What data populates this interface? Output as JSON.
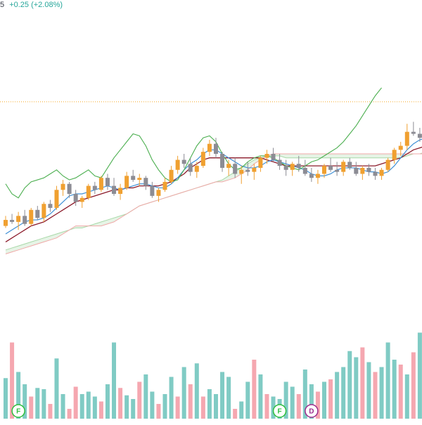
{
  "header": {
    "price_fragment": "5",
    "change": "+0.25 (+2.08%)"
  },
  "colors": {
    "candle_up": "#f0a030",
    "candle_down": "#8c8c94",
    "tenkan": "#3d8fd6",
    "kijun": "#8b1a2a",
    "chikou": "#4caf50",
    "span_a": "#a8d8a8",
    "span_b": "#f0a8a8",
    "cloud_fill": "#e6f4e6",
    "volume_up": "#80cbc4",
    "volume_down": "#f5a7b0",
    "price_line": "#f5a623",
    "marker_f": "#2dbe3c",
    "marker_d": "#9c2a8c"
  },
  "chart_data": {
    "type": "candlestick",
    "price_line": 35.6,
    "candles": [
      [
        29.4,
        29.9,
        29.3,
        29.7
      ],
      [
        29.7,
        30.0,
        29.5,
        29.6
      ],
      [
        29.6,
        30.1,
        29.2,
        29.9
      ],
      [
        29.9,
        30.2,
        29.4,
        29.5
      ],
      [
        29.5,
        30.3,
        29.4,
        30.2
      ],
      [
        30.2,
        30.4,
        29.7,
        29.8
      ],
      [
        29.8,
        30.6,
        29.6,
        30.5
      ],
      [
        30.5,
        30.7,
        30.1,
        30.3
      ],
      [
        30.3,
        31.4,
        30.2,
        31.2
      ],
      [
        31.2,
        31.7,
        30.9,
        31.5
      ],
      [
        31.5,
        31.6,
        30.8,
        31.0
      ],
      [
        31.0,
        31.2,
        30.4,
        30.6
      ],
      [
        30.6,
        30.9,
        30.3,
        30.8
      ],
      [
        30.8,
        31.5,
        30.7,
        31.4
      ],
      [
        31.4,
        31.6,
        31.0,
        31.2
      ],
      [
        31.2,
        31.9,
        31.1,
        31.8
      ],
      [
        31.8,
        32.0,
        31.2,
        31.4
      ],
      [
        31.4,
        31.8,
        30.9,
        31.0
      ],
      [
        31.0,
        31.5,
        30.7,
        31.3
      ],
      [
        31.3,
        32.1,
        31.2,
        31.9
      ],
      [
        31.9,
        32.2,
        31.6,
        31.7
      ],
      [
        31.7,
        32.0,
        31.4,
        31.8
      ],
      [
        31.8,
        31.9,
        31.2,
        31.4
      ],
      [
        31.4,
        31.6,
        30.8,
        30.9
      ],
      [
        30.9,
        31.3,
        30.6,
        31.2
      ],
      [
        31.2,
        31.8,
        31.1,
        31.6
      ],
      [
        31.6,
        32.4,
        31.5,
        32.2
      ],
      [
        32.2,
        32.9,
        32.0,
        32.7
      ],
      [
        32.7,
        33.0,
        32.3,
        32.5
      ],
      [
        32.5,
        32.8,
        31.9,
        32.1
      ],
      [
        32.1,
        32.6,
        31.8,
        32.4
      ],
      [
        32.4,
        33.3,
        32.3,
        33.1
      ],
      [
        33.1,
        33.7,
        32.9,
        33.5
      ],
      [
        33.5,
        33.8,
        32.8,
        33.0
      ],
      [
        33.0,
        33.1,
        32.1,
        32.3
      ],
      [
        32.3,
        32.7,
        31.9,
        32.5
      ],
      [
        32.5,
        32.8,
        31.8,
        32.0
      ],
      [
        32.0,
        32.4,
        31.5,
        32.2
      ],
      [
        32.2,
        32.6,
        31.9,
        32.1
      ],
      [
        32.1,
        32.5,
        31.7,
        32.3
      ],
      [
        32.3,
        32.9,
        32.1,
        32.8
      ],
      [
        32.8,
        33.2,
        32.5,
        33.0
      ],
      [
        33.0,
        33.3,
        32.6,
        32.7
      ],
      [
        32.7,
        33.0,
        32.2,
        32.4
      ],
      [
        32.4,
        32.7,
        31.9,
        32.2
      ],
      [
        32.2,
        32.6,
        31.9,
        32.5
      ],
      [
        32.5,
        32.9,
        32.1,
        32.3
      ],
      [
        32.3,
        32.7,
        31.9,
        32.0
      ],
      [
        32.0,
        32.3,
        31.6,
        31.8
      ],
      [
        31.8,
        32.2,
        31.5,
        32.0
      ],
      [
        32.0,
        32.5,
        31.8,
        32.4
      ],
      [
        32.4,
        32.8,
        32.1,
        32.2
      ],
      [
        32.2,
        32.6,
        31.9,
        32.1
      ],
      [
        32.1,
        32.7,
        31.9,
        32.6
      ],
      [
        32.6,
        32.8,
        32.2,
        32.3
      ],
      [
        32.3,
        32.6,
        31.9,
        32.0
      ],
      [
        32.0,
        32.4,
        31.7,
        32.3
      ],
      [
        32.3,
        32.5,
        31.9,
        32.1
      ],
      [
        32.1,
        32.3,
        31.7,
        31.9
      ],
      [
        31.9,
        32.3,
        31.7,
        32.2
      ],
      [
        32.2,
        32.8,
        32.1,
        32.7
      ],
      [
        32.7,
        33.3,
        32.5,
        33.2
      ],
      [
        33.2,
        33.6,
        32.9,
        33.4
      ],
      [
        33.4,
        34.5,
        33.2,
        34.1
      ],
      [
        34.1,
        34.6,
        33.9,
        34.0
      ],
      [
        34.0,
        34.3,
        33.6,
        33.8
      ],
      [
        33.8,
        34.1,
        33.4,
        33.9
      ]
    ],
    "tenkan": [
      29.0,
      29.2,
      29.4,
      29.6,
      29.7,
      29.7,
      29.8,
      30.0,
      30.3,
      30.6,
      30.9,
      31.0,
      31.0,
      31.1,
      31.2,
      31.3,
      31.4,
      31.3,
      31.2,
      31.3,
      31.4,
      31.5,
      31.5,
      31.4,
      31.3,
      31.3,
      31.5,
      31.8,
      32.2,
      32.5,
      32.7,
      33.0,
      33.2,
      33.2,
      33.0,
      32.8,
      32.6,
      32.4,
      32.3,
      32.3,
      32.4,
      32.6,
      32.7,
      32.6,
      32.5,
      32.4,
      32.3,
      32.2,
      32.0,
      31.9,
      31.9,
      32.0,
      32.2,
      32.3,
      32.3,
      32.3,
      32.2,
      32.1,
      32.1,
      32.0,
      32.1,
      32.4,
      32.8,
      33.2,
      33.5,
      33.7,
      33.8
    ],
    "kijun": [
      28.6,
      28.8,
      29.0,
      29.2,
      29.4,
      29.5,
      29.6,
      29.8,
      30.0,
      30.2,
      30.4,
      30.6,
      30.7,
      30.8,
      30.9,
      31.0,
      31.1,
      31.2,
      31.2,
      31.3,
      31.3,
      31.4,
      31.4,
      31.4,
      31.4,
      31.5,
      31.6,
      31.8,
      32.0,
      32.3,
      32.5,
      32.7,
      32.8,
      32.8,
      32.8,
      32.8,
      32.8,
      32.8,
      32.8,
      32.8,
      32.8,
      32.7,
      32.6,
      32.5,
      32.4,
      32.4,
      32.4,
      32.4,
      32.4,
      32.4,
      32.4,
      32.4,
      32.4,
      32.4,
      32.4,
      32.4,
      32.4,
      32.4,
      32.4,
      32.5,
      32.6,
      32.7,
      32.8,
      33.0,
      33.2,
      33.3,
      33.4
    ],
    "chikou": [
      31.5,
      31.0,
      30.8,
      31.3,
      31.6,
      31.7,
      31.8,
      32.0,
      32.2,
      31.9,
      31.7,
      31.8,
      32.0,
      32.2,
      31.9,
      31.8,
      32.3,
      32.8,
      33.2,
      33.6,
      34.0,
      33.9,
      33.4,
      32.7,
      32.2,
      31.8,
      31.6,
      31.7,
      32.2,
      32.8,
      33.4,
      33.8,
      33.9,
      33.6,
      33.0,
      32.5,
      32.2,
      32.3,
      32.6,
      32.8,
      32.9,
      32.9,
      32.8,
      32.6,
      32.4,
      32.3,
      32.2,
      32.4,
      32.6,
      32.7,
      32.9,
      33.1,
      33.3,
      33.6,
      34.0,
      34.4,
      34.9,
      35.4,
      35.9,
      36.3
    ],
    "span_a": [
      28.2,
      28.3,
      28.4,
      28.5,
      28.6,
      28.7,
      28.8,
      28.9,
      29.0,
      29.1,
      29.2,
      29.3,
      29.3,
      29.4,
      29.5,
      29.6,
      29.7,
      29.8,
      29.9,
      30.0,
      30.2,
      30.4,
      30.5,
      30.6,
      30.7,
      30.8,
      30.9,
      31.0,
      31.1,
      31.2,
      31.3,
      31.4,
      31.5,
      31.6,
      31.7,
      31.9,
      32.1,
      32.3,
      32.5,
      32.7,
      32.8,
      32.9,
      32.9,
      32.9,
      32.8,
      32.8,
      32.8,
      32.8,
      32.8,
      32.8,
      32.8,
      32.8,
      32.8,
      32.8,
      32.8,
      32.8,
      32.8,
      32.8,
      32.8,
      32.8,
      32.8,
      32.8,
      32.8,
      32.9,
      33.0,
      33.0,
      33.1
    ],
    "span_b": [
      28.0,
      28.1,
      28.2,
      28.3,
      28.4,
      28.5,
      28.6,
      28.7,
      28.8,
      29.0,
      29.2,
      29.4,
      29.4,
      29.4,
      29.4,
      29.4,
      29.5,
      29.6,
      29.8,
      30.0,
      30.2,
      30.4,
      30.5,
      30.6,
      30.7,
      30.8,
      30.9,
      31.0,
      31.1,
      31.2,
      31.3,
      31.4,
      31.5,
      31.6,
      31.6,
      31.7,
      31.8,
      32.0,
      32.2,
      32.5,
      32.7,
      32.9,
      33.0,
      33.0,
      33.0,
      33.0,
      33.0,
      33.0,
      33.0,
      33.0,
      33.0,
      33.0,
      33.0,
      33.0,
      33.0,
      33.0,
      33.0,
      33.0,
      33.0,
      33.0,
      33.0,
      33.0,
      33.0,
      33.0,
      33.0,
      33.0,
      33.0
    ],
    "volume": [
      [
        33,
        1
      ],
      [
        62,
        0
      ],
      [
        38,
        1
      ],
      [
        28,
        1
      ],
      [
        18,
        0
      ],
      [
        25,
        1
      ],
      [
        24,
        1
      ],
      [
        12,
        0
      ],
      [
        49,
        1
      ],
      [
        20,
        1
      ],
      [
        8,
        0
      ],
      [
        26,
        0
      ],
      [
        20,
        1
      ],
      [
        22,
        1
      ],
      [
        18,
        1
      ],
      [
        14,
        0
      ],
      [
        28,
        1
      ],
      [
        62,
        1
      ],
      [
        25,
        0
      ],
      [
        19,
        1
      ],
      [
        16,
        1
      ],
      [
        30,
        0
      ],
      [
        36,
        1
      ],
      [
        22,
        1
      ],
      [
        12,
        0
      ],
      [
        20,
        1
      ],
      [
        34,
        1
      ],
      [
        18,
        0
      ],
      [
        42,
        1
      ],
      [
        28,
        0
      ],
      [
        45,
        1
      ],
      [
        18,
        0
      ],
      [
        24,
        1
      ],
      [
        20,
        1
      ],
      [
        38,
        1
      ],
      [
        34,
        1
      ],
      [
        8,
        0
      ],
      [
        14,
        1
      ],
      [
        30,
        1
      ],
      [
        48,
        0
      ],
      [
        36,
        1
      ],
      [
        20,
        0
      ],
      [
        18,
        1
      ],
      [
        16,
        1
      ],
      [
        30,
        1
      ],
      [
        26,
        1
      ],
      [
        20,
        0
      ],
      [
        40,
        1
      ],
      [
        28,
        1
      ],
      [
        22,
        0
      ],
      [
        30,
        1
      ],
      [
        32,
        0
      ],
      [
        38,
        1
      ],
      [
        42,
        1
      ],
      [
        55,
        1
      ],
      [
        50,
        1
      ],
      [
        58,
        0
      ],
      [
        46,
        1
      ],
      [
        38,
        0
      ],
      [
        42,
        1
      ],
      [
        62,
        1
      ],
      [
        48,
        1
      ],
      [
        44,
        0
      ],
      [
        36,
        1
      ],
      [
        54,
        0
      ],
      [
        70,
        1
      ],
      [
        80,
        1
      ]
    ],
    "markers": [
      {
        "label": "F",
        "index": 2
      },
      {
        "label": "F",
        "index": 43
      },
      {
        "label": "D",
        "index": 48
      }
    ]
  }
}
